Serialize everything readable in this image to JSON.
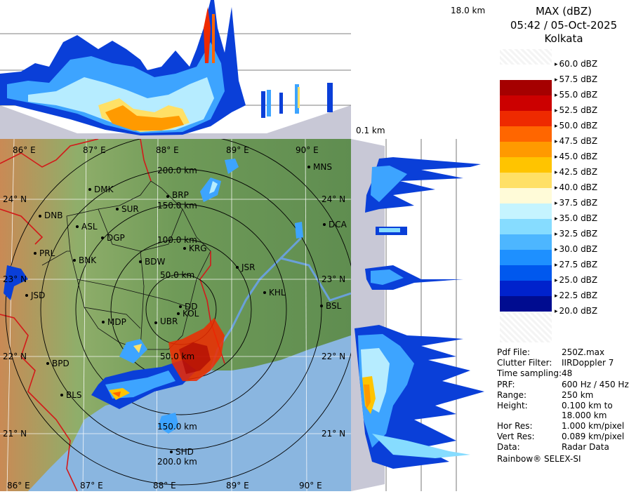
{
  "header": {
    "title": "MAX (dBZ)",
    "datetime": "05:42 / 05-Oct-2025",
    "station": "Kolkata"
  },
  "top_profile": {
    "max_height_label": "18.0 km"
  },
  "side_profile": {
    "min_height_label": "0.1 km"
  },
  "color_scale": {
    "unit": "dBZ",
    "entries": [
      {
        "label": "60.0 dBZ",
        "color": "#f2f2f2"
      },
      {
        "label": "57.5 dBZ",
        "color": "#ffffff"
      },
      {
        "label": "55.0 dBZ",
        "color": "#a50000"
      },
      {
        "label": "52.5 dBZ",
        "color": "#cc0000"
      },
      {
        "label": "50.0 dBZ",
        "color": "#ee2a00"
      },
      {
        "label": "47.5 dBZ",
        "color": "#ff6600"
      },
      {
        "label": "45.0 dBZ",
        "color": "#ff9a00"
      },
      {
        "label": "42.5 dBZ",
        "color": "#ffc400"
      },
      {
        "label": "40.0 dBZ",
        "color": "#ffe066"
      },
      {
        "label": "37.5 dBZ",
        "color": "#fffbd8"
      },
      {
        "label": "35.0 dBZ",
        "color": "#c5f4ff"
      },
      {
        "label": "32.5 dBZ",
        "color": "#86dcff"
      },
      {
        "label": "30.0 dBZ",
        "color": "#4db6ff"
      },
      {
        "label": "27.5 dBZ",
        "color": "#1e90ff"
      },
      {
        "label": "25.0 dBZ",
        "color": "#0058ee"
      },
      {
        "label": "22.5 dBZ",
        "color": "#0022cc"
      },
      {
        "label": "20.0 dBZ",
        "color": "#000c90"
      }
    ]
  },
  "info": {
    "rows": [
      {
        "key": "Pdf File:",
        "value": "250Z.max"
      },
      {
        "key": "Clutter Filter:",
        "value": "IIRDoppler 7"
      },
      {
        "key": "Time sampling:",
        "value": "48"
      },
      {
        "key": "PRF:",
        "value": "600 Hz / 450 Hz"
      },
      {
        "key": "Range:",
        "value": "250 km"
      },
      {
        "key": "Height:",
        "value": "0.100 km to"
      },
      {
        "key": "",
        "value": "18.000 km"
      },
      {
        "key": "Hor Res:",
        "value": "1.000 km/pixel"
      },
      {
        "key": "Vert Res:",
        "value": "0.089 km/pixel"
      },
      {
        "key": "Data:",
        "value": "Radar Data"
      }
    ],
    "credit": "Rainbow® SELEX-SI"
  },
  "map": {
    "rings": [
      "50.0 km",
      "100.0 km",
      "150.0 km",
      "200.0 km"
    ],
    "ring_labels_south": [
      "50.0 km",
      "150.0 km",
      "200.0 km"
    ],
    "longitudes_top": [
      "86° E",
      "87° E",
      "88° E",
      "89° E",
      "90° E"
    ],
    "longitudes_bottom": [
      "86° E",
      "87° E",
      "88° E",
      "89° E",
      "90° E"
    ],
    "latitudes_left": [
      "24° N",
      "23° N",
      "22° N",
      "21° N"
    ],
    "latitudes_right": [
      "24° N",
      "23° N",
      "22° N",
      "21° N"
    ],
    "sites": [
      "MNS",
      "DMK",
      "BRP",
      "DNB",
      "SUR",
      "ASL",
      "DCA",
      "DGP",
      "KRG",
      "PRL",
      "BNK",
      "BDW",
      "JSR",
      "JSD",
      "KHL",
      "DD",
      "KOL",
      "BSL",
      "MDP",
      "UBR",
      "BPD",
      "BLS",
      "SHD"
    ]
  }
}
